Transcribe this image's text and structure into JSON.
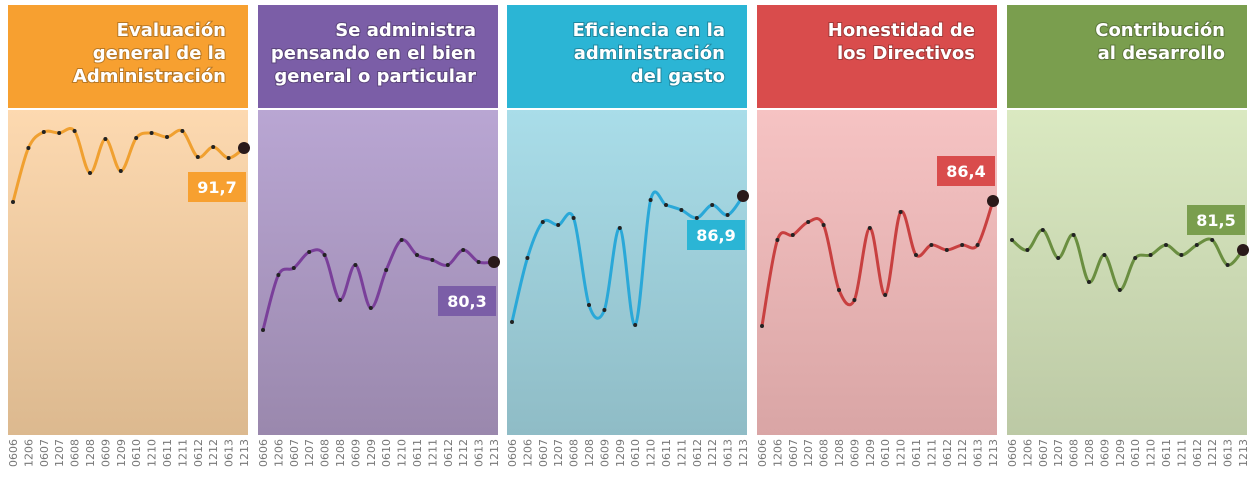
{
  "chart_data": [
    {
      "type": "line",
      "title": [
        "Evaluación",
        "general de la",
        "Administración"
      ],
      "header_color": "#f7a030",
      "bg": [
        "#fdd9b0",
        "#dcb98f"
      ],
      "color": "#f0a030",
      "categories": [
        "0606",
        "1206",
        "0607",
        "1207",
        "0608",
        "1208",
        "0609",
        "1209",
        "0610",
        "1210",
        "0611",
        "1211",
        "0612",
        "1212",
        "0613",
        "1213"
      ],
      "values": [
        86.3,
        91.7,
        93.3,
        93.2,
        93.4,
        89.2,
        92.6,
        89.4,
        92.7,
        93.2,
        92.8,
        93.4,
        90.8,
        91.8,
        90.7,
        91.7
      ],
      "value_labels": [
        null,
        null,
        null,
        null,
        null,
        null,
        null,
        null,
        null,
        null,
        null,
        null,
        null,
        null,
        null,
        "91,7"
      ],
      "ylim": [
        63,
        95.5
      ]
    },
    {
      "type": "line",
      "title": [
        "Se administra",
        "pensando en el bien",
        "general o particular"
      ],
      "header_color": "#7b5ea7",
      "bg": [
        "#b9a6d3",
        "#9a88ad"
      ],
      "color": "#7a3f9a",
      "categories": [
        "0606",
        "1206",
        "0607",
        "1207",
        "0608",
        "1208",
        "0609",
        "1209",
        "0610",
        "1210",
        "0611",
        "1211",
        "0612",
        "1212",
        "0613",
        "1213"
      ],
      "values": [
        73.5,
        79.0,
        79.7,
        81.3,
        81.0,
        76.5,
        80.0,
        75.7,
        79.5,
        82.5,
        81.0,
        80.5,
        80.0,
        81.5,
        80.3,
        80.3
      ],
      "value_labels": [
        null,
        null,
        null,
        null,
        null,
        null,
        null,
        null,
        null,
        null,
        null,
        null,
        null,
        null,
        null,
        "80,3"
      ],
      "ylim": [
        63,
        95.5
      ]
    },
    {
      "type": "line",
      "title": [
        "Eficiencia en la",
        "administración",
        "del gasto"
      ],
      "header_color": "#2bb5d5",
      "bg": [
        "#a9dde9",
        "#8fbcc6"
      ],
      "color": "#2aa8d8",
      "categories": [
        "0606",
        "1206",
        "0607",
        "1207",
        "0608",
        "1208",
        "0609",
        "1209",
        "0610",
        "1210",
        "0611",
        "1211",
        "0612",
        "1212",
        "0613",
        "1213"
      ],
      "values": [
        74.3,
        80.7,
        84.3,
        84.0,
        84.7,
        76.0,
        75.5,
        83.7,
        74.0,
        86.5,
        86.0,
        85.5,
        84.7,
        86.0,
        85.0,
        86.9
      ],
      "value_labels": [
        null,
        null,
        null,
        null,
        null,
        null,
        null,
        null,
        null,
        null,
        null,
        null,
        null,
        null,
        null,
        "86,9"
      ],
      "ylim": [
        63,
        95.5
      ]
    },
    {
      "type": "line",
      "title": [
        "Honestidad de",
        "los Directivos"
      ],
      "header_color": "#d94c4c",
      "bg": [
        "#f6c3c3",
        "#d9a5a5"
      ],
      "color": "#c84040",
      "categories": [
        "0606",
        "1206",
        "0607",
        "1207",
        "0608",
        "1208",
        "0609",
        "1209",
        "0610",
        "1210",
        "0611",
        "1211",
        "0612",
        "1212",
        "0613",
        "1213"
      ],
      "values": [
        73.9,
        82.5,
        83.0,
        84.3,
        84.0,
        77.5,
        76.5,
        83.7,
        77.0,
        85.3,
        81.0,
        82.0,
        81.5,
        82.0,
        82.0,
        86.4
      ],
      "value_labels": [
        null,
        null,
        null,
        null,
        null,
        null,
        null,
        null,
        null,
        null,
        null,
        null,
        null,
        null,
        null,
        "86,4"
      ],
      "ylim": [
        63,
        95.5
      ]
    },
    {
      "type": "line",
      "title": [
        "Contribución",
        "al desarrollo"
      ],
      "header_color": "#7a9e4e",
      "bg": [
        "#dae9c1",
        "#bcc9a5"
      ],
      "color": "#6a8e40",
      "categories": [
        "0606",
        "1206",
        "0607",
        "1207",
        "0608",
        "1208",
        "0609",
        "1209",
        "0610",
        "1210",
        "0611",
        "1211",
        "0612",
        "1212",
        "0613",
        "1213"
      ],
      "values": [
        82.5,
        81.5,
        83.5,
        80.7,
        83.0,
        78.3,
        81.0,
        77.5,
        80.7,
        81.0,
        82.0,
        81.0,
        82.0,
        82.5,
        80.0,
        81.5
      ],
      "value_labels": [
        null,
        null,
        null,
        null,
        null,
        null,
        null,
        null,
        null,
        null,
        null,
        null,
        null,
        null,
        null,
        "81,5"
      ],
      "ylim": [
        63,
        95.5
      ]
    }
  ]
}
